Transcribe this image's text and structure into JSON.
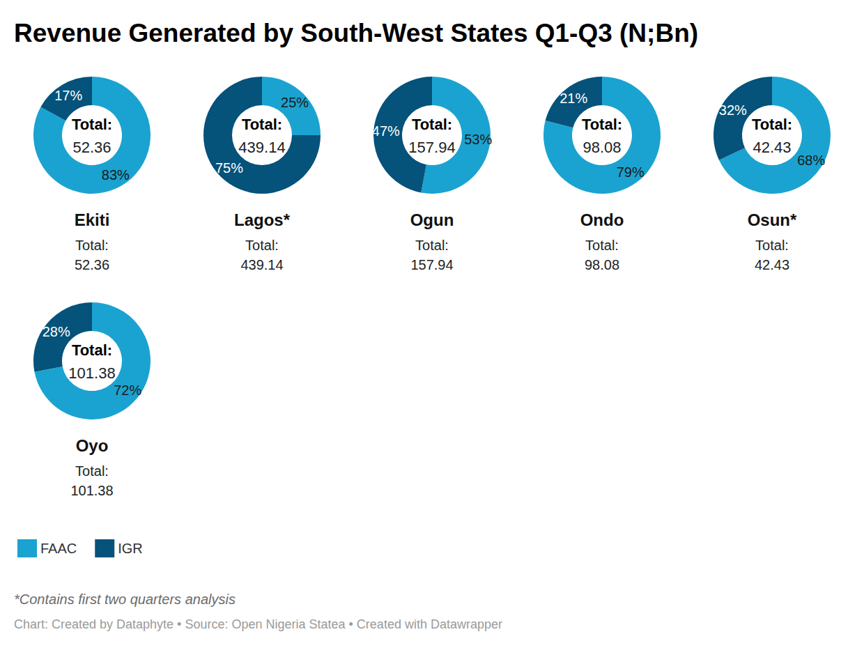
{
  "title": "Revenue Generated by South-West States Q1-Q3 (N;Bn)",
  "note": "*Contains first two quarters analysis",
  "source": "Chart: Created by Dataphyte • Source: Open Nigeria Statea • Created with Datawrapper",
  "legend": "bottom-left",
  "chart_data": [
    {
      "type": "pie",
      "title": "Ekiti",
      "total_label": "Total:",
      "total": 52.36,
      "categories": [
        "FAAC",
        "IGR"
      ],
      "values": [
        83,
        17
      ],
      "value_labels": [
        "83%",
        "17%"
      ],
      "colors": [
        "#1aa3d0",
        "#05527a"
      ],
      "data_labels": true
    },
    {
      "type": "pie",
      "title": "Lagos*",
      "total_label": "Total:",
      "total": 439.14,
      "categories": [
        "FAAC",
        "IGR"
      ],
      "values": [
        25,
        75
      ],
      "value_labels": [
        "25%",
        "75%"
      ],
      "colors": [
        "#1aa3d0",
        "#05527a"
      ],
      "data_labels": true
    },
    {
      "type": "pie",
      "title": "Ogun",
      "total_label": "Total:",
      "total": 157.94,
      "categories": [
        "FAAC",
        "IGR"
      ],
      "values": [
        53,
        47
      ],
      "value_labels": [
        "53%",
        "47%"
      ],
      "colors": [
        "#1aa3d0",
        "#05527a"
      ],
      "data_labels": true
    },
    {
      "type": "pie",
      "title": "Ondo",
      "total_label": "Total:",
      "total": 98.08,
      "categories": [
        "FAAC",
        "IGR"
      ],
      "values": [
        79,
        21
      ],
      "value_labels": [
        "79%",
        "21%"
      ],
      "colors": [
        "#1aa3d0",
        "#05527a"
      ],
      "data_labels": true
    },
    {
      "type": "pie",
      "title": "Osun*",
      "total_label": "Total:",
      "total": 42.43,
      "categories": [
        "FAAC",
        "IGR"
      ],
      "values": [
        68,
        32
      ],
      "value_labels": [
        "68%",
        "32%"
      ],
      "colors": [
        "#1aa3d0",
        "#05527a"
      ],
      "data_labels": true
    },
    {
      "type": "pie",
      "title": "Oyo",
      "total_label": "Total:",
      "total": 101.38,
      "categories": [
        "FAAC",
        "IGR"
      ],
      "values": [
        72,
        28
      ],
      "value_labels": [
        "72%",
        "28%"
      ],
      "colors": [
        "#1aa3d0",
        "#05527a"
      ],
      "data_labels": true
    }
  ]
}
